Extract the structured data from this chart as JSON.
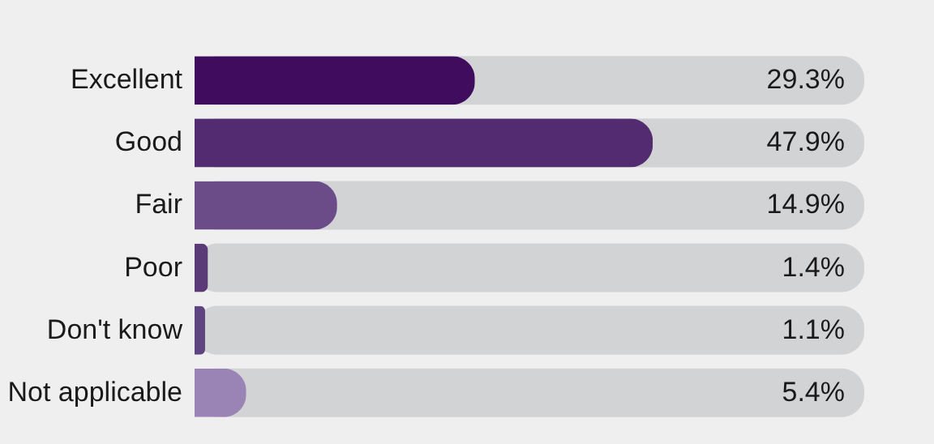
{
  "chart_data": {
    "type": "bar",
    "orientation": "horizontal",
    "categories": [
      "Excellent",
      "Good",
      "Fair",
      "Poor",
      "Don't know",
      "Not applicable"
    ],
    "values": [
      29.3,
      47.9,
      14.9,
      1.4,
      1.1,
      5.4
    ],
    "colors": [
      "#3f0c5e",
      "#532b70",
      "#6c4c88",
      "#5a3b78",
      "#5e4580",
      "#9a84b6"
    ],
    "value_labels": [
      "29.3%",
      "47.9%",
      "14.9%",
      "1.4%",
      "1.1%",
      "5.4%"
    ],
    "xlim": [
      0,
      70
    ],
    "tick_labels": "y",
    "grid": false,
    "legend": false
  }
}
